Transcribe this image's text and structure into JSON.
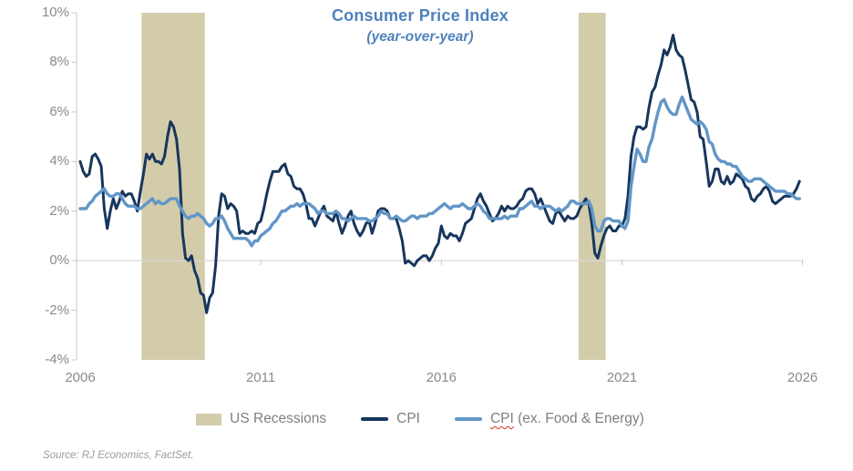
{
  "header": {
    "title": "Consumer Price Index",
    "subtitle": "(year-over-year)",
    "title_color": "#4f81bd"
  },
  "legend": {
    "recessions_label": "US Recessions",
    "cpi_label": "CPI",
    "core_label_squiggled_part": "CPI",
    "core_label_rest": " (ex. Food & Energy)"
  },
  "source_note": "Source: RJ Economics, FactSet.",
  "chart_data": {
    "type": "line",
    "title": "Consumer Price Index",
    "subtitle": "(year-over-year)",
    "x_axis": {
      "tick_labels": [
        "2006",
        "2011",
        "2016",
        "2021",
        "2026"
      ],
      "range": [
        2006,
        2026
      ]
    },
    "y_axis": {
      "tick_labels": [
        "10%",
        "8%",
        "6%",
        "4%",
        "2%",
        "0%",
        "-2%",
        "-4%"
      ],
      "range": [
        -4,
        10
      ],
      "unit": "percent-yoy"
    },
    "gridlines": "zero-line-only",
    "legend_position": "bottom",
    "recession_color": "#d3ccaa",
    "recession_bands": [
      {
        "start": 2007.7,
        "end": 2009.45
      },
      {
        "start": 2019.8,
        "end": 2020.55
      }
    ],
    "series": [
      {
        "name": "CPI",
        "color": "#17365d",
        "start_year": 2006,
        "interval_months": 1,
        "values": [
          4.0,
          3.6,
          3.4,
          3.5,
          4.2,
          4.3,
          4.1,
          3.8,
          2.1,
          1.3,
          2.0,
          2.5,
          2.1,
          2.4,
          2.8,
          2.6,
          2.7,
          2.7,
          2.4,
          2.0,
          2.8,
          3.5,
          4.3,
          4.1,
          4.3,
          4.0,
          4.0,
          3.9,
          4.2,
          5.0,
          5.6,
          5.4,
          4.9,
          3.7,
          1.1,
          0.1,
          0.0,
          0.2,
          -0.4,
          -0.7,
          -1.3,
          -1.4,
          -2.1,
          -1.5,
          -1.3,
          -0.2,
          1.8,
          2.7,
          2.6,
          2.1,
          2.3,
          2.2,
          2.0,
          1.1,
          1.2,
          1.1,
          1.1,
          1.2,
          1.1,
          1.5,
          1.6,
          2.1,
          2.7,
          3.2,
          3.6,
          3.6,
          3.6,
          3.8,
          3.9,
          3.5,
          3.4,
          3.0,
          2.9,
          2.9,
          2.7,
          2.3,
          1.7,
          1.7,
          1.4,
          1.7,
          2.0,
          2.2,
          1.8,
          1.7,
          1.6,
          2.0,
          1.5,
          1.1,
          1.4,
          1.8,
          2.0,
          1.5,
          1.2,
          1.0,
          1.2,
          1.5,
          1.6,
          1.1,
          1.5,
          2.0,
          2.1,
          2.1,
          2.0,
          1.7,
          1.7,
          1.7,
          1.3,
          0.8,
          -0.1,
          0.0,
          -0.1,
          -0.2,
          0.0,
          0.1,
          0.2,
          0.2,
          0.0,
          0.2,
          0.5,
          0.7,
          1.4,
          1.0,
          0.9,
          1.1,
          1.0,
          1.0,
          0.8,
          1.1,
          1.5,
          1.6,
          1.7,
          2.1,
          2.5,
          2.7,
          2.4,
          2.2,
          1.9,
          1.6,
          1.7,
          1.9,
          2.2,
          2.0,
          2.2,
          2.1,
          2.1,
          2.2,
          2.4,
          2.5,
          2.8,
          2.9,
          2.9,
          2.7,
          2.3,
          2.5,
          2.2,
          1.9,
          1.6,
          1.5,
          1.9,
          2.0,
          1.8,
          1.6,
          1.8,
          1.7,
          1.7,
          1.8,
          2.1,
          2.3,
          2.5,
          2.3,
          1.5,
          0.3,
          0.1,
          0.6,
          1.0,
          1.3,
          1.4,
          1.2,
          1.2,
          1.4,
          1.4,
          1.7,
          2.6,
          4.2,
          5.0,
          5.4,
          5.4,
          5.3,
          5.4,
          6.2,
          6.8,
          7.0,
          7.5,
          7.9,
          8.5,
          8.3,
          8.6,
          9.1,
          8.5,
          8.3,
          8.2,
          7.7,
          7.1,
          6.5,
          6.4,
          6.0,
          5.0,
          4.9,
          4.0,
          3.0,
          3.2,
          3.7,
          3.7,
          3.2,
          3.1,
          3.4,
          3.1,
          3.2,
          3.5,
          3.4,
          3.3,
          3.0,
          2.9,
          2.5,
          2.4,
          2.6,
          2.7,
          2.9,
          3.0,
          2.8,
          2.4,
          2.3,
          2.4,
          2.5,
          2.6,
          2.6,
          2.6,
          2.7,
          2.9,
          3.2
        ]
      },
      {
        "name": "CPI (ex. Food & Energy)",
        "color": "#6296c8",
        "start_year": 2006,
        "interval_months": 1,
        "values": [
          2.1,
          2.1,
          2.1,
          2.3,
          2.4,
          2.6,
          2.7,
          2.8,
          2.9,
          2.7,
          2.6,
          2.6,
          2.7,
          2.7,
          2.5,
          2.3,
          2.2,
          2.2,
          2.2,
          2.1,
          2.1,
          2.2,
          2.3,
          2.4,
          2.5,
          2.3,
          2.4,
          2.3,
          2.3,
          2.4,
          2.5,
          2.5,
          2.5,
          2.2,
          2.0,
          1.8,
          1.7,
          1.8,
          1.8,
          1.9,
          1.8,
          1.7,
          1.5,
          1.4,
          1.5,
          1.7,
          1.7,
          1.8,
          1.6,
          1.3,
          1.1,
          0.9,
          0.9,
          0.9,
          0.9,
          0.9,
          0.8,
          0.6,
          0.8,
          0.8,
          1.0,
          1.1,
          1.2,
          1.3,
          1.5,
          1.6,
          1.8,
          2.0,
          2.0,
          2.1,
          2.2,
          2.2,
          2.3,
          2.2,
          2.3,
          2.3,
          2.3,
          2.2,
          2.1,
          1.9,
          2.0,
          2.0,
          1.9,
          1.9,
          1.9,
          2.0,
          1.9,
          1.7,
          1.7,
          1.6,
          1.7,
          1.8,
          1.7,
          1.7,
          1.7,
          1.7,
          1.6,
          1.6,
          1.7,
          1.8,
          2.0,
          1.9,
          1.9,
          1.7,
          1.7,
          1.8,
          1.7,
          1.6,
          1.6,
          1.7,
          1.8,
          1.8,
          1.7,
          1.8,
          1.8,
          1.8,
          1.9,
          1.9,
          2.0,
          2.1,
          2.2,
          2.3,
          2.2,
          2.1,
          2.2,
          2.2,
          2.2,
          2.3,
          2.2,
          2.1,
          2.1,
          2.2,
          2.3,
          2.2,
          2.0,
          1.9,
          1.7,
          1.7,
          1.7,
          1.7,
          1.7,
          1.8,
          1.7,
          1.8,
          1.8,
          1.8,
          2.1,
          2.1,
          2.2,
          2.3,
          2.4,
          2.2,
          2.2,
          2.1,
          2.2,
          2.2,
          2.2,
          2.1,
          2.0,
          2.1,
          2.0,
          2.1,
          2.2,
          2.4,
          2.4,
          2.3,
          2.3,
          2.3,
          2.3,
          2.4,
          2.1,
          1.4,
          1.2,
          1.2,
          1.6,
          1.7,
          1.7,
          1.6,
          1.6,
          1.6,
          1.4,
          1.3,
          1.6,
          3.0,
          3.8,
          4.5,
          4.3,
          4.0,
          4.0,
          4.6,
          4.9,
          5.5,
          6.0,
          6.4,
          6.5,
          6.2,
          6.0,
          5.9,
          5.9,
          6.3,
          6.6,
          6.3,
          6.0,
          5.7,
          5.6,
          5.5,
          5.6,
          5.5,
          5.3,
          4.8,
          4.7,
          4.3,
          4.1,
          4.0,
          4.0,
          3.9,
          3.9,
          3.8,
          3.8,
          3.6,
          3.4,
          3.3,
          3.2,
          3.2,
          3.3,
          3.3,
          3.3,
          3.2,
          3.1,
          3.0,
          2.9,
          2.8,
          2.8,
          2.8,
          2.8,
          2.7,
          2.7,
          2.6,
          2.5,
          2.5
        ]
      }
    ]
  }
}
